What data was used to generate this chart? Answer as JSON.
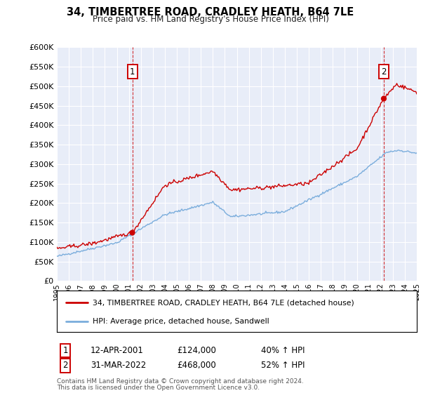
{
  "title": "34, TIMBERTREE ROAD, CRADLEY HEATH, B64 7LE",
  "subtitle": "Price paid vs. HM Land Registry's House Price Index (HPI)",
  "hpi_label": "HPI: Average price, detached house, Sandwell",
  "price_label": "34, TIMBERTREE ROAD, CRADLEY HEATH, B64 7LE (detached house)",
  "footnote1": "Contains HM Land Registry data © Crown copyright and database right 2024.",
  "footnote2": "This data is licensed under the Open Government Licence v3.0.",
  "marker1_label": "1",
  "marker1_date": "12-APR-2001",
  "marker1_price": 124000,
  "marker1_price_str": "£124,000",
  "marker1_hpi": "40% ↑ HPI",
  "marker1_x": 2001.29,
  "marker2_label": "2",
  "marker2_date": "31-MAR-2022",
  "marker2_price": 468000,
  "marker2_price_str": "£468,000",
  "marker2_hpi": "52% ↑ HPI",
  "marker2_x": 2022.25,
  "price_color": "#cc0000",
  "hpi_color": "#7aaddc",
  "vline_color": "#cc0000",
  "grid_color": "#d8dde8",
  "plot_bg_color": "#e8edf8",
  "ylim_max": 600000,
  "ylim_min": 0,
  "xlim_min": 1995,
  "xlim_max": 2025,
  "yticks": [
    0,
    50000,
    100000,
    150000,
    200000,
    250000,
    300000,
    350000,
    400000,
    450000,
    500000,
    550000,
    600000
  ]
}
